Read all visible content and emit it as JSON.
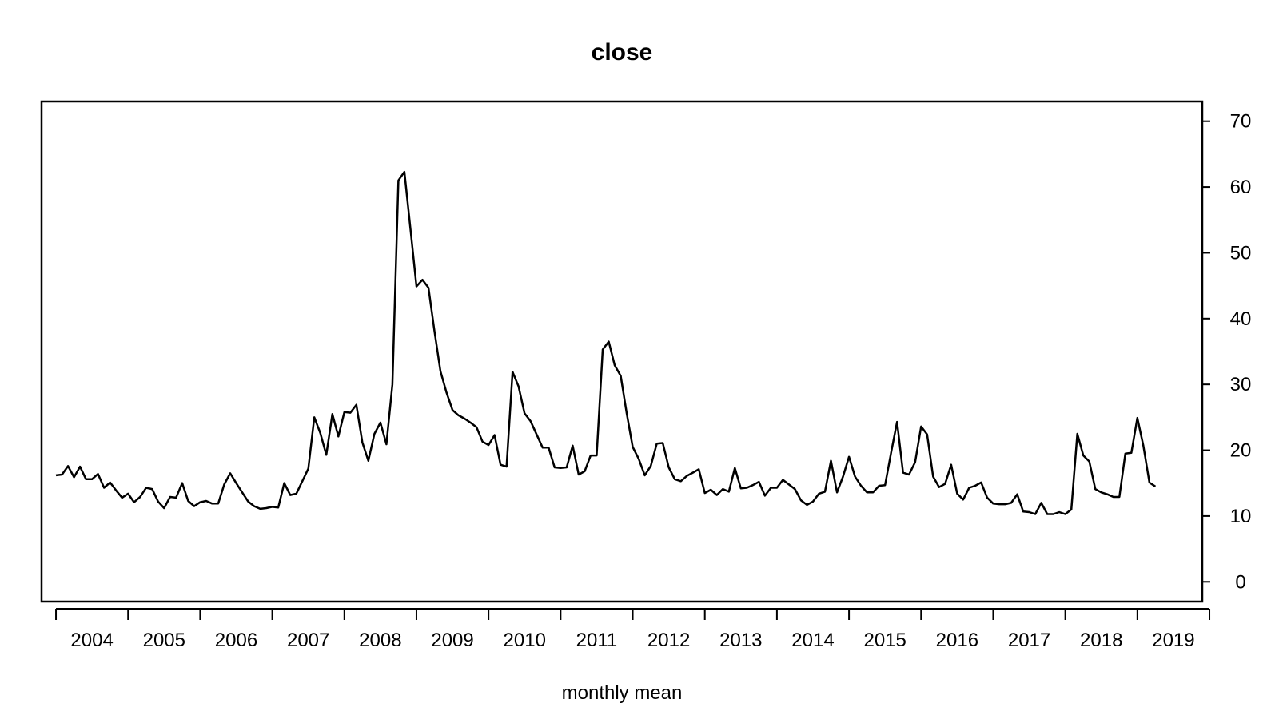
{
  "chart_data": {
    "type": "line",
    "title": "close",
    "xlabel": "monthly mean",
    "ylabel": "",
    "ylim": [
      -3,
      73
    ],
    "yticks": [
      0,
      10,
      20,
      30,
      40,
      50,
      60,
      70
    ],
    "xlim": [
      2003.8,
      2019.9
    ],
    "xticks": [
      2004,
      2005,
      2006,
      2007,
      2008,
      2009,
      2010,
      2011,
      2012,
      2013,
      2014,
      2015,
      2016,
      2017,
      2018,
      2019,
      2020
    ],
    "xtick_labels": [
      "2004",
      "2005",
      "2006",
      "2007",
      "2008",
      "2009",
      "2010",
      "2011",
      "2012",
      "2013",
      "2014",
      "2015",
      "2016",
      "2017",
      "2018",
      "2019"
    ],
    "y_axis_side": "right",
    "grid": false,
    "line_color": "#000000",
    "series": [
      {
        "start": "2004-01",
        "values": [
          16.2,
          16.3,
          17.6,
          15.9,
          17.5,
          15.6,
          15.6,
          16.4,
          14.3,
          15.1,
          13.9,
          12.8,
          13.4,
          12.1,
          12.9,
          14.3,
          14.1,
          12.2,
          11.2,
          12.9,
          12.8,
          15.0,
          12.3,
          11.5,
          12.1,
          12.3,
          11.9,
          11.9,
          14.8,
          16.5,
          15.0,
          13.6,
          12.2,
          11.5,
          11.1,
          11.2,
          11.4,
          11.3,
          15.0,
          13.2,
          13.4,
          15.3,
          17.2,
          25.0,
          22.6,
          19.3,
          25.5,
          22.1,
          25.8,
          25.7,
          26.9,
          21.2,
          18.4,
          22.5,
          24.2,
          20.9,
          30.0,
          61.0,
          62.3,
          53.6,
          44.9,
          45.9,
          44.7,
          38.1,
          32.0,
          28.8,
          26.1,
          25.3,
          24.8,
          24.2,
          23.5,
          21.3,
          20.8,
          22.3,
          17.8,
          17.5,
          31.9,
          29.7,
          25.6,
          24.4,
          22.4,
          20.4,
          20.4,
          17.4,
          17.3,
          17.4,
          20.7,
          16.3,
          16.8,
          19.2,
          19.2,
          35.3,
          36.5,
          32.9,
          31.3,
          25.6,
          20.5,
          18.7,
          16.2,
          17.6,
          21.0,
          21.1,
          17.4,
          15.6,
          15.3,
          16.1,
          16.6,
          17.1,
          13.5,
          14.0,
          13.2,
          14.1,
          13.7,
          17.3,
          14.2,
          14.3,
          14.7,
          15.2,
          13.1,
          14.3,
          14.3,
          15.5,
          14.8,
          14.1,
          12.4,
          11.7,
          12.2,
          13.4,
          13.7,
          18.4,
          13.6,
          16.0,
          19.0,
          16.0,
          14.6,
          13.6,
          13.6,
          14.6,
          14.7,
          19.6,
          24.3,
          16.6,
          16.3,
          18.2,
          23.6,
          22.4,
          16.0,
          14.4,
          14.9,
          17.8,
          13.4,
          12.5,
          14.3,
          14.6,
          15.1,
          12.8,
          11.9,
          11.8,
          11.8,
          12.0,
          13.3,
          10.7,
          10.6,
          10.3,
          12.0,
          10.3,
          10.3,
          10.6,
          10.3,
          11.0,
          22.5,
          19.2,
          18.3,
          14.1,
          13.6,
          13.3,
          12.9,
          12.9,
          19.5,
          19.6,
          24.9,
          20.7,
          15.1,
          14.5
        ]
      }
    ]
  }
}
